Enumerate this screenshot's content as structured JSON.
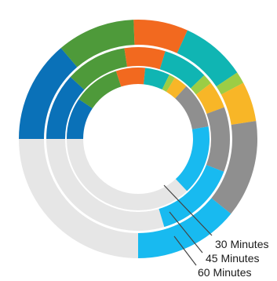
{
  "chart_data": {
    "type": "pie",
    "variant": "nested-radial-rings",
    "title": "",
    "colors": {
      "background_track": "#e6e6e6",
      "segments": [
        "#0a71b8",
        "#4e9a3a",
        "#f2691f",
        "#10b5b3",
        "#9ccd45",
        "#f8b627",
        "#8f8f8f",
        "#18baf0"
      ],
      "leader_line": "#444444"
    },
    "rings": [
      {
        "label": "60 Minutes",
        "segments": [
          {
            "color": "#0a71b8",
            "value": 13.8
          },
          {
            "color": "#4e9a3a",
            "value": 10.6
          },
          {
            "color": "#f2691f",
            "value": 7.4
          },
          {
            "color": "#10b5b3",
            "value": 8.8
          },
          {
            "color": "#9ccd45",
            "value": 1.6
          },
          {
            "color": "#f8b627",
            "value": 5.4
          },
          {
            "color": "#8f8f8f",
            "value": 13.2
          },
          {
            "color": "#18baf0",
            "value": 14.2
          }
        ]
      },
      {
        "label": "45 Minutes",
        "segments": [
          {
            "color": "#0a71b8",
            "value": 11.8
          },
          {
            "color": "#4e9a3a",
            "value": 10.8
          },
          {
            "color": "#f2691f",
            "value": 7.2
          },
          {
            "color": "#10b5b3",
            "value": 8.0
          },
          {
            "color": "#9ccd45",
            "value": 1.8
          },
          {
            "color": "#f8b627",
            "value": 4.8
          },
          {
            "color": "#8f8f8f",
            "value": 11.4
          },
          {
            "color": "#18baf0",
            "value": 14.6
          }
        ]
      },
      {
        "label": "30 Minutes",
        "segments": [
          {
            "color": "#0a71b8",
            "value": 9.4
          },
          {
            "color": "#4e9a3a",
            "value": 10.6
          },
          {
            "color": "#f2691f",
            "value": 6.6
          },
          {
            "color": "#10b5b3",
            "value": 5.6
          },
          {
            "color": "#9ccd45",
            "value": 1.4
          },
          {
            "color": "#f8b627",
            "value": 3.2
          },
          {
            "color": "#8f8f8f",
            "value": 10.4
          },
          {
            "color": "#18baf0",
            "value": 15.8
          }
        ]
      }
    ],
    "legend": "none",
    "grid": false
  }
}
